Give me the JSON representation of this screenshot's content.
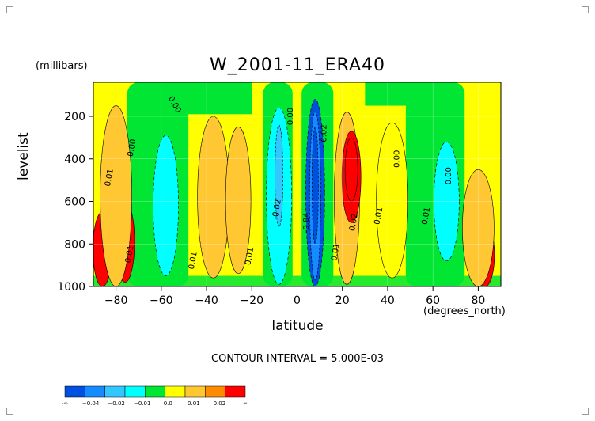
{
  "chart_data": {
    "type": "heatmap",
    "title": "W_2001-11_ERA40",
    "units_label": "(millibars)",
    "xlabel": "latitude",
    "x_units": "(degrees_north)",
    "ylabel": "levelist",
    "xlim": [
      -90,
      90
    ],
    "ylim": [
      1000,
      40
    ],
    "y_reversed": true,
    "grid": true,
    "x_ticks": [
      -80,
      -60,
      -40,
      -20,
      0,
      20,
      40,
      60,
      80
    ],
    "x_tick_labels": [
      "−80",
      "−60",
      "−40",
      "−20",
      "0",
      "20",
      "40",
      "60",
      "80"
    ],
    "y_ticks": [
      200,
      400,
      600,
      800,
      1000
    ],
    "y_tick_labels": [
      "200",
      "400",
      "600",
      "800",
      "1000"
    ],
    "contour_interval_text": "CONTOUR INTERVAL = 5.000E-03",
    "colorbar": {
      "colors": [
        "#0050e0",
        "#148cff",
        "#32c8ff",
        "#00ffff",
        "#00e632",
        "#ffff00",
        "#ffc832",
        "#ff8c00",
        "#ff0000"
      ],
      "labels": [
        "-∞",
        "−0.04",
        "−0.02",
        "−0.01",
        "0.0",
        "0.01",
        "0.02",
        "∞"
      ]
    },
    "features": [
      {
        "lat": -86,
        "p_top": 650,
        "p_bot": 1000,
        "value": 0.03
      },
      {
        "lat": -76,
        "p_top": 600,
        "p_bot": 980,
        "value": 0.03
      },
      {
        "lat": -80,
        "p_top": 150,
        "p_bot": 1000,
        "value": 0.01
      },
      {
        "lat": -58,
        "p_top": 290,
        "p_bot": 950,
        "value": -0.015
      },
      {
        "lat": -37,
        "p_top": 200,
        "p_bot": 960,
        "value": 0.01
      },
      {
        "lat": -26,
        "p_top": 250,
        "p_bot": 940,
        "value": 0.015
      },
      {
        "lat": -8,
        "p_top": 160,
        "p_bot": 990,
        "value": -0.02
      },
      {
        "lat": 8,
        "p_top": 120,
        "p_bot": 1000,
        "value": -0.045
      },
      {
        "lat": 22,
        "p_top": 180,
        "p_bot": 990,
        "value": 0.015
      },
      {
        "lat": 24,
        "p_top": 270,
        "p_bot": 700,
        "value": 0.03
      },
      {
        "lat": 42,
        "p_top": 230,
        "p_bot": 960,
        "value": 0.005
      },
      {
        "lat": 66,
        "p_top": 320,
        "p_bot": 880,
        "value": -0.012
      },
      {
        "lat": 83,
        "p_top": 700,
        "p_bot": 1000,
        "value": 0.03
      },
      {
        "lat": 80,
        "p_top": 450,
        "p_bot": 1000,
        "value": 0.01
      }
    ],
    "contour_labels": [
      {
        "text": "0.00",
        "lat": -55,
        "p": 150,
        "rot": 60
      },
      {
        "text": "0.00",
        "lat": -2,
        "p": 200,
        "rot": -90
      },
      {
        "text": "0.00",
        "lat": -72,
        "p": 350,
        "rot": -80
      },
      {
        "text": "0.00",
        "lat": 45,
        "p": 400,
        "rot": -90
      },
      {
        "text": "0.00",
        "lat": 68,
        "p": 480,
        "rot": -90
      },
      {
        "text": "0.02",
        "lat": 13,
        "p": 280,
        "rot": -90
      },
      {
        "text": "0.01",
        "lat": -82,
        "p": 490,
        "rot": -80
      },
      {
        "text": "-0.02",
        "lat": -8,
        "p": 640,
        "rot": -80
      },
      {
        "text": "0.01",
        "lat": 37,
        "p": 670,
        "rot": -80
      },
      {
        "text": "0.01",
        "lat": 58,
        "p": 670,
        "rot": -80
      },
      {
        "text": "0.01",
        "lat": -73,
        "p": 850,
        "rot": -80
      },
      {
        "text": "0.01",
        "lat": -45,
        "p": 880,
        "rot": -80
      },
      {
        "text": "0.01",
        "lat": -20,
        "p": 860,
        "rot": -80
      },
      {
        "text": "0.01",
        "lat": 18,
        "p": 840,
        "rot": -80
      },
      {
        "text": "-0.04",
        "lat": 5,
        "p": 700,
        "rot": -90
      },
      {
        "text": "0.02",
        "lat": 26,
        "p": 700,
        "rot": -80
      }
    ]
  }
}
